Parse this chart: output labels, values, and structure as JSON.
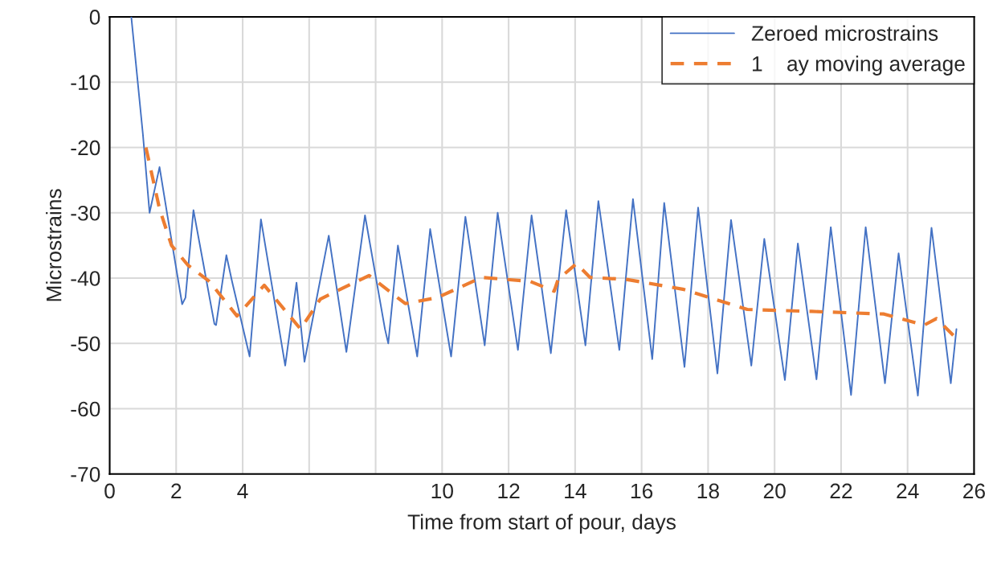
{
  "chart_data": {
    "type": "line",
    "xlabel": "Time from start of pour, days",
    "ylabel": "Microstrains",
    "xlim": [
      0,
      26
    ],
    "ylim": [
      -70,
      0
    ],
    "xticks": [
      0,
      2,
      4,
      {
        "value": 6,
        "label": null
      },
      {
        "value": 8,
        "label": null
      },
      10,
      12,
      14,
      16,
      18,
      20,
      22,
      24,
      26
    ],
    "yticks": [
      -70,
      -60,
      -50,
      -40,
      -30,
      -20,
      -10,
      0
    ],
    "grid": true,
    "legend": "top right",
    "series": [
      {
        "name": "Zeroed microstrains",
        "color": "#4472c4",
        "line_style": "solid",
        "x": [
          0.65,
          1.0,
          1.2,
          1.5,
          1.74,
          2.18,
          2.28,
          2.52,
          3.15,
          3.2,
          3.51,
          3.68,
          4.21,
          4.55,
          5.28,
          5.62,
          5.86,
          6.59,
          7.12,
          7.68,
          8.28,
          8.38,
          8.67,
          9.25,
          9.64,
          10.27,
          10.7,
          11.28,
          11.67,
          12.28,
          12.69,
          13.27,
          13.73,
          14.31,
          14.7,
          15.33,
          15.74,
          16.32,
          16.68,
          17.29,
          17.7,
          18.28,
          18.69,
          19.3,
          19.69,
          20.31,
          20.7,
          21.26,
          21.69,
          22.3,
          22.74,
          23.32,
          23.73,
          24.31,
          24.72,
          25.3,
          25.47
        ],
        "values": [
          0,
          -18,
          -30,
          -23,
          -30.5,
          -44,
          -43,
          -29.6,
          -47,
          -47.2,
          -36.5,
          -40.5,
          -52,
          -31,
          -53.4,
          -40.7,
          -52.8,
          -33.5,
          -51.3,
          -30.4,
          -47.8,
          -50,
          -35,
          -52,
          -32.5,
          -52,
          -30.6,
          -50.3,
          -30,
          -51,
          -30.4,
          -51.5,
          -29.6,
          -50.3,
          -28.2,
          -51,
          -27.9,
          -52.4,
          -28.5,
          -53.6,
          -29.2,
          -54.6,
          -31.1,
          -53.4,
          -34,
          -55.6,
          -34.7,
          -55.5,
          -32.2,
          -57.9,
          -32.2,
          -56.1,
          -36.2,
          -58,
          -32.3,
          -56.1,
          -47.8
        ]
      },
      {
        "name": "1    ay moving average",
        "color": "#ed7d31",
        "line_style": "dashed",
        "x": [
          1.09,
          1.5,
          1.86,
          2.35,
          3.0,
          3.83,
          4.65,
          5.74,
          6.34,
          7.8,
          8.89,
          9.85,
          11.19,
          12.64,
          13.37,
          13.49,
          14.04,
          14.45,
          15.54,
          17.24,
          19.18,
          21.11,
          23.29,
          24.5,
          24.87,
          25.42
        ],
        "values": [
          -20,
          -29.4,
          -35,
          -38,
          -40.5,
          -45.8,
          -41.1,
          -47.8,
          -43.2,
          -39.6,
          -43.9,
          -43,
          -39.9,
          -40.5,
          -42,
          -40.2,
          -37.8,
          -39.9,
          -40.2,
          -41.7,
          -44.8,
          -45.1,
          -45.5,
          -47.2,
          -46.2,
          -49
        ]
      }
    ]
  }
}
